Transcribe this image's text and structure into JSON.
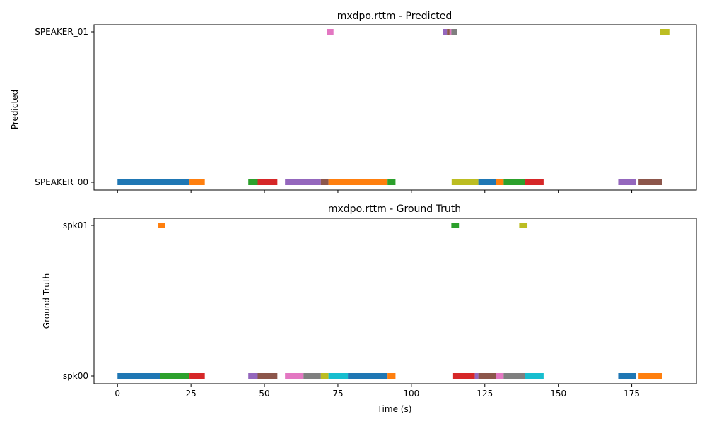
{
  "chart_data": [
    {
      "type": "timeline",
      "title": "mxdpo.rttm - Predicted",
      "xlabel": "",
      "ylabel": "Predicted",
      "xlim": [
        -8,
        197
      ],
      "rows": [
        "SPEAKER_00",
        "SPEAKER_01"
      ],
      "x_ticks": [
        0,
        25,
        50,
        75,
        100,
        125,
        150,
        175
      ],
      "show_x_tick_labels": false,
      "segments": [
        {
          "row": "SPEAKER_00",
          "start": 0.0,
          "end": 24.5,
          "color": "#1f77b4"
        },
        {
          "row": "SPEAKER_00",
          "start": 24.5,
          "end": 29.7,
          "color": "#ff7f0e"
        },
        {
          "row": "SPEAKER_00",
          "start": 44.5,
          "end": 47.7,
          "color": "#2ca02c"
        },
        {
          "row": "SPEAKER_00",
          "start": 47.7,
          "end": 54.4,
          "color": "#d62728"
        },
        {
          "row": "SPEAKER_00",
          "start": 57.0,
          "end": 69.2,
          "color": "#9467bd"
        },
        {
          "row": "SPEAKER_00",
          "start": 69.2,
          "end": 71.8,
          "color": "#8c564b"
        },
        {
          "row": "SPEAKER_00",
          "start": 72.3,
          "end": 73.3,
          "color": "#e377c2"
        },
        {
          "row": "SPEAKER_00",
          "start": 71.8,
          "end": 91.9,
          "color": "#ff7f0e"
        },
        {
          "row": "SPEAKER_00",
          "start": 91.9,
          "end": 94.6,
          "color": "#2ca02c"
        },
        {
          "row": "SPEAKER_00",
          "start": 113.7,
          "end": 122.8,
          "color": "#bcbd22"
        },
        {
          "row": "SPEAKER_00",
          "start": 122.8,
          "end": 128.8,
          "color": "#1f77b4"
        },
        {
          "row": "SPEAKER_00",
          "start": 128.8,
          "end": 131.4,
          "color": "#ff7f0e"
        },
        {
          "row": "SPEAKER_00",
          "start": 131.4,
          "end": 138.7,
          "color": "#2ca02c"
        },
        {
          "row": "SPEAKER_00",
          "start": 138.7,
          "end": 145.0,
          "color": "#d62728"
        },
        {
          "row": "SPEAKER_00",
          "start": 170.4,
          "end": 176.5,
          "color": "#9467bd"
        },
        {
          "row": "SPEAKER_00",
          "start": 177.3,
          "end": 185.3,
          "color": "#8c564b"
        },
        {
          "row": "SPEAKER_01",
          "start": 71.2,
          "end": 73.5,
          "color": "#e377c2"
        },
        {
          "row": "SPEAKER_01",
          "start": 110.8,
          "end": 112.1,
          "color": "#9467bd"
        },
        {
          "row": "SPEAKER_01",
          "start": 112.1,
          "end": 113.0,
          "color": "#8c564b"
        },
        {
          "row": "SPEAKER_01",
          "start": 113.0,
          "end": 113.6,
          "color": "#e377c2"
        },
        {
          "row": "SPEAKER_01",
          "start": 113.6,
          "end": 115.5,
          "color": "#7f7f7f"
        },
        {
          "row": "SPEAKER_01",
          "start": 184.5,
          "end": 187.8,
          "color": "#bcbd22"
        }
      ]
    },
    {
      "type": "timeline",
      "title": "mxdpo.rttm - Ground Truth",
      "xlabel": "Time (s)",
      "ylabel": "Ground Truth",
      "xlim": [
        -8,
        197
      ],
      "rows": [
        "spk00",
        "spk01"
      ],
      "x_ticks": [
        0,
        25,
        50,
        75,
        100,
        125,
        150,
        175
      ],
      "show_x_tick_labels": true,
      "segments": [
        {
          "row": "spk00",
          "start": 0.0,
          "end": 14.4,
          "color": "#1f77b4"
        },
        {
          "row": "spk00",
          "start": 14.4,
          "end": 24.5,
          "color": "#2ca02c"
        },
        {
          "row": "spk00",
          "start": 24.5,
          "end": 29.7,
          "color": "#d62728"
        },
        {
          "row": "spk00",
          "start": 44.5,
          "end": 47.7,
          "color": "#9467bd"
        },
        {
          "row": "spk00",
          "start": 47.7,
          "end": 54.4,
          "color": "#8c564b"
        },
        {
          "row": "spk00",
          "start": 57.0,
          "end": 63.3,
          "color": "#e377c2"
        },
        {
          "row": "spk00",
          "start": 63.3,
          "end": 69.2,
          "color": "#7f7f7f"
        },
        {
          "row": "spk00",
          "start": 69.2,
          "end": 71.8,
          "color": "#bcbd22"
        },
        {
          "row": "spk00",
          "start": 71.8,
          "end": 78.4,
          "color": "#17becf"
        },
        {
          "row": "spk00",
          "start": 78.4,
          "end": 91.9,
          "color": "#1f77b4"
        },
        {
          "row": "spk00",
          "start": 91.9,
          "end": 94.6,
          "color": "#ff7f0e"
        },
        {
          "row": "spk00",
          "start": 114.2,
          "end": 121.6,
          "color": "#d62728"
        },
        {
          "row": "spk00",
          "start": 121.6,
          "end": 122.8,
          "color": "#9467bd"
        },
        {
          "row": "spk00",
          "start": 122.8,
          "end": 128.8,
          "color": "#8c564b"
        },
        {
          "row": "spk00",
          "start": 128.8,
          "end": 131.4,
          "color": "#e377c2"
        },
        {
          "row": "spk00",
          "start": 131.4,
          "end": 138.7,
          "color": "#7f7f7f"
        },
        {
          "row": "spk00",
          "start": 138.7,
          "end": 145.0,
          "color": "#17becf"
        },
        {
          "row": "spk00",
          "start": 170.4,
          "end": 176.5,
          "color": "#1f77b4"
        },
        {
          "row": "spk00",
          "start": 177.3,
          "end": 185.3,
          "color": "#ff7f0e"
        },
        {
          "row": "spk01",
          "start": 13.9,
          "end": 16.1,
          "color": "#ff7f0e"
        },
        {
          "row": "spk01",
          "start": 113.6,
          "end": 116.2,
          "color": "#2ca02c"
        },
        {
          "row": "spk01",
          "start": 136.7,
          "end": 139.5,
          "color": "#bcbd22"
        }
      ]
    }
  ]
}
